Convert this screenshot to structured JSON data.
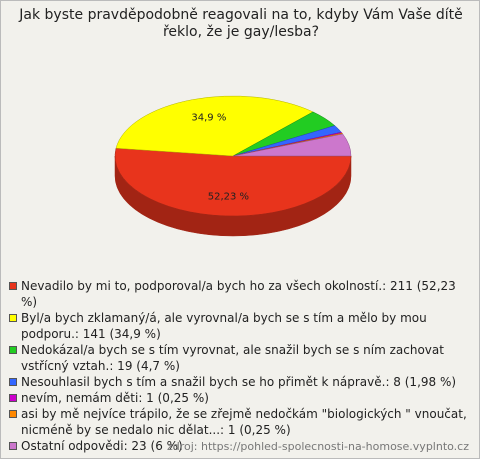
{
  "chart_data": {
    "type": "pie",
    "title": "Jak byste pravděpodobně reagovali na to, kdyby Vám Vaše dítě řeklo, že je gay/lesba?",
    "categories": [
      "Nevadilo by mi to, podporoval/a bych ho za všech okolností.: 211 (52,23 %)",
      "Byl/a bych zklamaný/á, ale vyrovnal/a bych se s tím a mělo by mou podporu.: 141 (34,9 %)",
      "Nedokázal/a bych se s tím vyrovnat, ale snažil bych se s ním zachovat vstřícný vztah.: 19 (4,7 %)",
      "Nesouhlasil bych s tím a snažil bych se ho přimět k nápravě.: 8 (1,98 %)",
      "nevím, nemám děti: 1 (0,25 %)",
      "asi by mě nejvíce trápilo, že se zřejmě nedočkám \"biologických \" vnoučat, nicméně by se nedalo nic dělat...: 1 (0,25 %)",
      "Ostatní odpovědi: 23 (6 %)"
    ],
    "values": [
      52.23,
      34.9,
      4.7,
      1.98,
      0.25,
      0.25,
      6
    ],
    "value_labels": [
      "52,23 %",
      "34,9 %",
      null,
      null,
      null,
      null,
      null
    ],
    "colors": [
      "#e8341c",
      "#ffff00",
      "#22cc22",
      "#3366ff",
      "#cc00cc",
      "#ff8800",
      "#cc77cc"
    ],
    "source": "zdroj: https://pohled-spolecnosti-na-homose.vyplnto.cz"
  }
}
